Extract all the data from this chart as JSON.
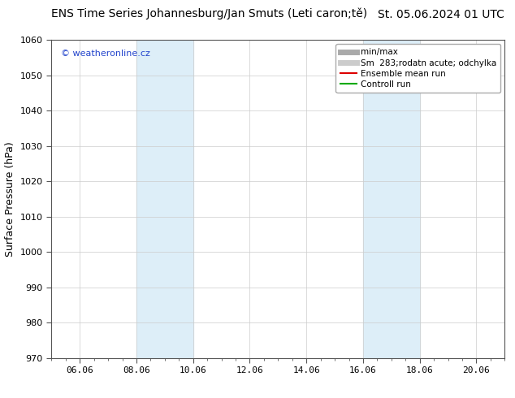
{
  "title_left": "ENS Time Series Johannesburg/Jan Smuts (Leti caron;tě)",
  "title_right": "St. 05.06.2024 01 UTC",
  "ylabel": "Surface Pressure (hPa)",
  "ylim": [
    970,
    1060
  ],
  "yticks": [
    970,
    980,
    990,
    1000,
    1010,
    1020,
    1030,
    1040,
    1050,
    1060
  ],
  "xtick_labels": [
    "06.06",
    "08.06",
    "10.06",
    "12.06",
    "14.06",
    "16.06",
    "18.06",
    "20.06"
  ],
  "xtick_positions": [
    1,
    3,
    5,
    7,
    9,
    11,
    13,
    15
  ],
  "xlim": [
    0,
    16
  ],
  "shaded_regions": [
    {
      "xstart": 3,
      "xend": 5,
      "color": "#ddeef8"
    },
    {
      "xstart": 11,
      "xend": 13,
      "color": "#ddeef8"
    }
  ],
  "watermark_text": "© weatheronline.cz",
  "watermark_color": "#2244cc",
  "legend_entries": [
    {
      "label": "min/max",
      "color": "#aaaaaa",
      "lw": 5
    },
    {
      "label": "Sm  283;rodatn acute; odchylka",
      "color": "#cccccc",
      "lw": 5
    },
    {
      "label": "Ensemble mean run",
      "color": "#dd0000",
      "lw": 1.5
    },
    {
      "label": "Controll run",
      "color": "#00aa00",
      "lw": 1.5
    }
  ],
  "bg_color": "#ffffff",
  "plot_bg_color": "#ffffff",
  "spine_color": "#555555",
  "grid_color": "#cccccc",
  "title_fontsize": 10,
  "tick_fontsize": 8,
  "ylabel_fontsize": 9,
  "legend_fontsize": 7.5
}
